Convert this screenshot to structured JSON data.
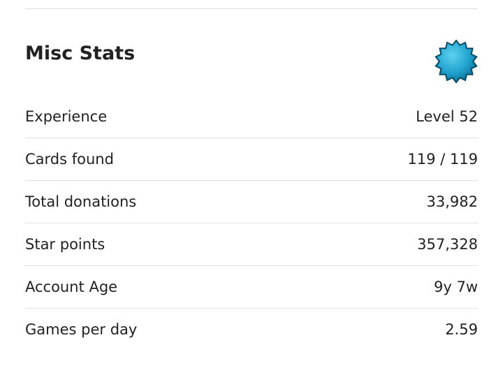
{
  "header": {
    "title": "Misc Stats"
  },
  "stats": [
    {
      "label": "Experience",
      "value": "Level 52"
    },
    {
      "label": "Cards found",
      "value": "119 / 119"
    },
    {
      "label": "Total donations",
      "value": "33,982"
    },
    {
      "label": "Star points",
      "value": "357,328"
    },
    {
      "label": "Account Age",
      "value": "9y 7w"
    },
    {
      "label": "Games per day",
      "value": "2.59"
    }
  ]
}
